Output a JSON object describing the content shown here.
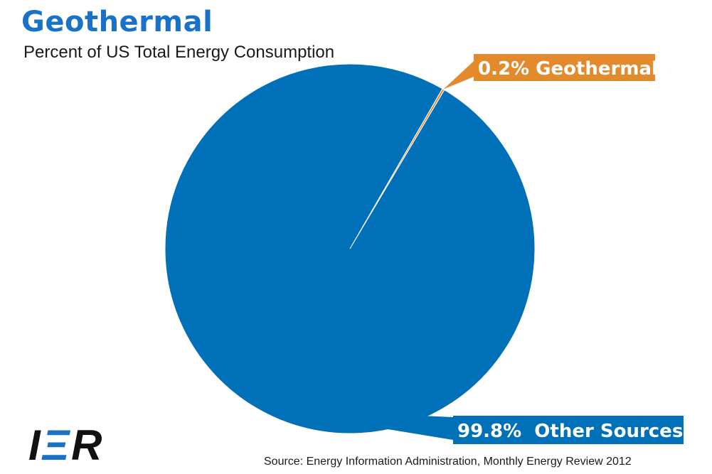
{
  "header": {
    "title": "Geothermal",
    "subtitle": "Percent of US Total Energy Consumption"
  },
  "chart_data": {
    "type": "pie",
    "title": "Geothermal",
    "subtitle": "Percent of US Total Energy Consumption",
    "slices": [
      {
        "label": "0.2% Geothermal",
        "value": 0.2,
        "color": "#e38b2c"
      },
      {
        "label": "99.8%  Other Sources",
        "value": 99.8,
        "color": "#0070b8"
      }
    ],
    "start_angle_deg": 30
  },
  "footer": {
    "logo_text": "IER",
    "source": "Source: Energy Information Administration, Monthly Energy Review 2012"
  },
  "colors": {
    "title": "#1a72c6",
    "other_sources": "#0070b8",
    "geothermal": "#e38b2c"
  }
}
